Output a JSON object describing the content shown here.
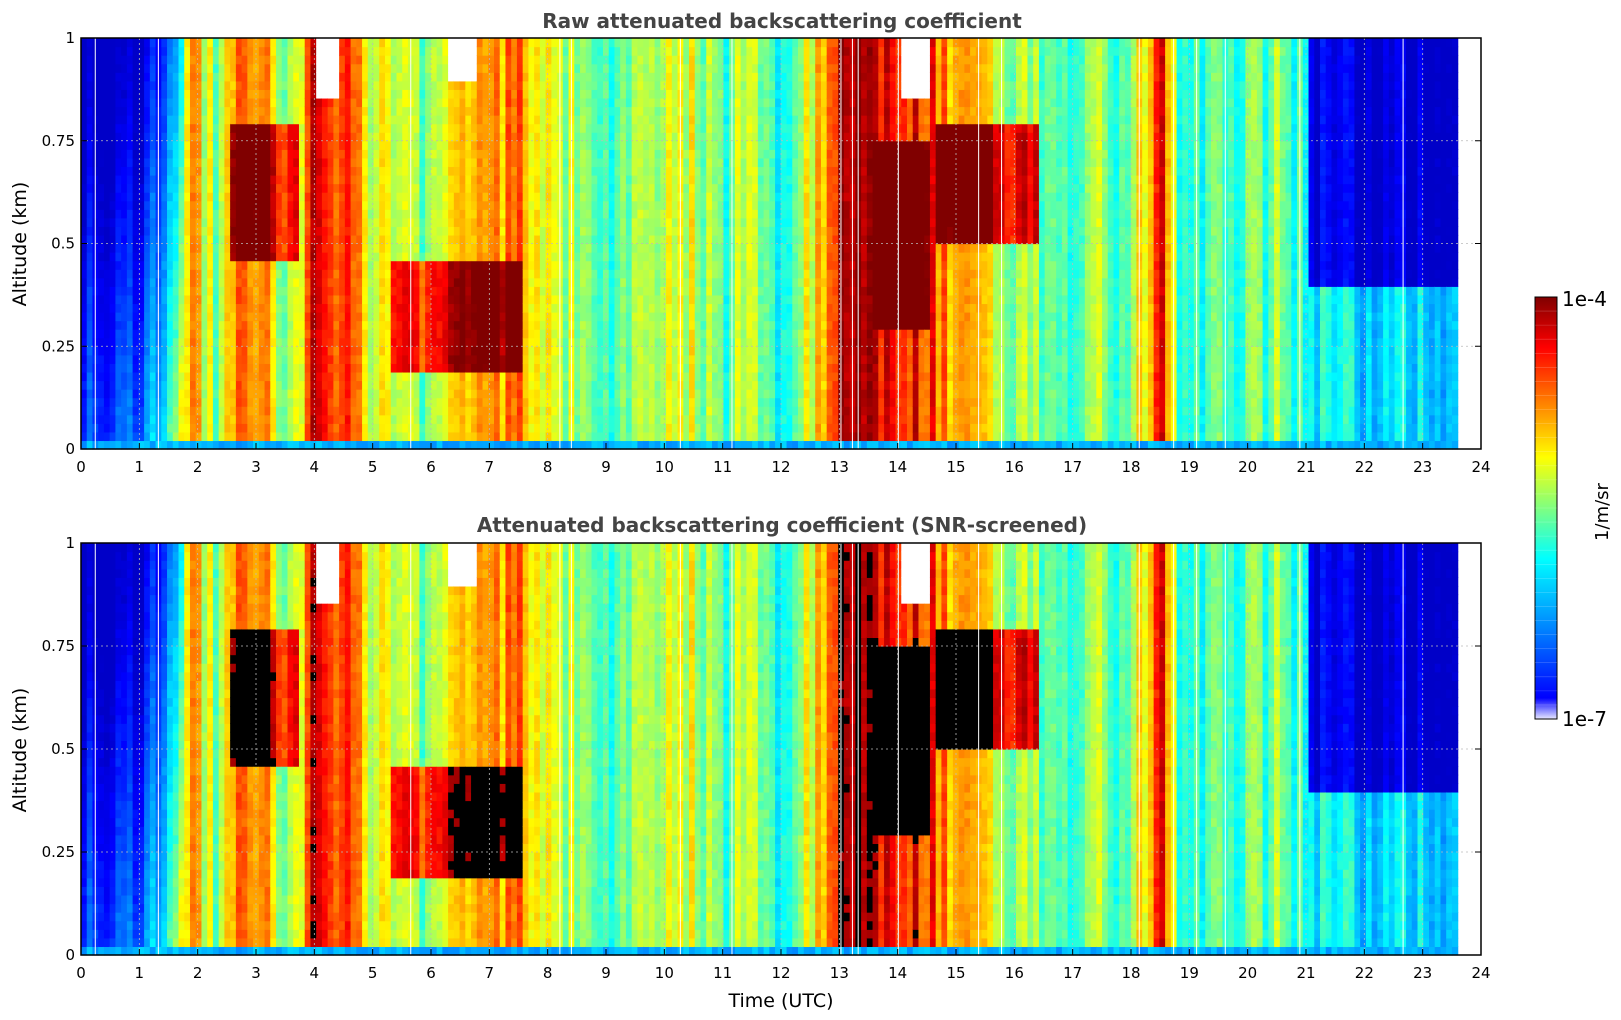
{
  "chart_data": [
    {
      "type": "heatmap",
      "title": "Raw attenuated backscattering coefficient",
      "xlabel": "",
      "ylabel": "Altitude (km)",
      "xlim": [
        0,
        24
      ],
      "ylim": [
        0,
        1
      ],
      "x_ticks": [
        "0",
        "1",
        "2",
        "3",
        "4",
        "5",
        "6",
        "7",
        "8",
        "9",
        "10",
        "11",
        "12",
        "13",
        "14",
        "15",
        "16",
        "17",
        "18",
        "19",
        "20",
        "21",
        "22",
        "23",
        "24"
      ],
      "y_ticks": [
        "0",
        "0.25",
        "0.5",
        "0.75",
        "1"
      ],
      "grid": true,
      "data_end_time": 23.6,
      "colorscale": "jet",
      "color_range": [
        "1e-7",
        "1e-4"
      ],
      "features": [
        {
          "time": [
            0.0,
            1.8
          ],
          "level": 0.2,
          "desc": "low backscatter"
        },
        {
          "time": [
            2.6,
            3.6
          ],
          "level": 0.95,
          "desc": "dense aerosol 0.5-0.8 km"
        },
        {
          "time": [
            4.0,
            4.7
          ],
          "level": 0.95,
          "desc": "dense surface layer"
        },
        {
          "time": [
            5.3,
            7.5
          ],
          "level": 0.9,
          "desc": "layer 0.2-0.45 km"
        },
        {
          "time": [
            13.0,
            14.6
          ],
          "level": 0.95,
          "desc": "dense surface layer"
        },
        {
          "time": [
            14.8,
            16.4
          ],
          "level": 0.95,
          "desc": "layer 0.5-0.8 km"
        },
        {
          "time": [
            18.4,
            18.7
          ],
          "level": 0.95,
          "desc": "thin dense column"
        },
        {
          "time": [
            21.0,
            23.6
          ],
          "level": 0.3,
          "desc": "low backscatter aloft"
        }
      ]
    },
    {
      "type": "heatmap",
      "title": "Attenuated backscattering coefficient (SNR-screened)",
      "xlabel": "Time (UTC)",
      "ylabel": "Altitude (km)",
      "xlim": [
        0,
        24
      ],
      "ylim": [
        0,
        1
      ],
      "x_ticks": [
        "0",
        "1",
        "2",
        "3",
        "4",
        "5",
        "6",
        "7",
        "8",
        "9",
        "10",
        "11",
        "12",
        "13",
        "14",
        "15",
        "16",
        "17",
        "18",
        "19",
        "20",
        "21",
        "22",
        "23",
        "24"
      ],
      "y_ticks": [
        "0",
        "0.25",
        "0.5",
        "0.75",
        "1"
      ],
      "grid": true,
      "data_end_time": 23.6,
      "colorscale": "jet",
      "color_range": [
        "1e-7",
        "1e-4"
      ],
      "screened_color": "#000000"
    }
  ],
  "colorbar": {
    "min_label": "1e-7",
    "max_label": "1e-4",
    "label": "1/m/sr",
    "colors": [
      "#e8e8ff",
      "#0000ff",
      "#00a0ff",
      "#00ffff",
      "#80ff80",
      "#ffff00",
      "#ff8000",
      "#ff0000",
      "#800000"
    ]
  }
}
